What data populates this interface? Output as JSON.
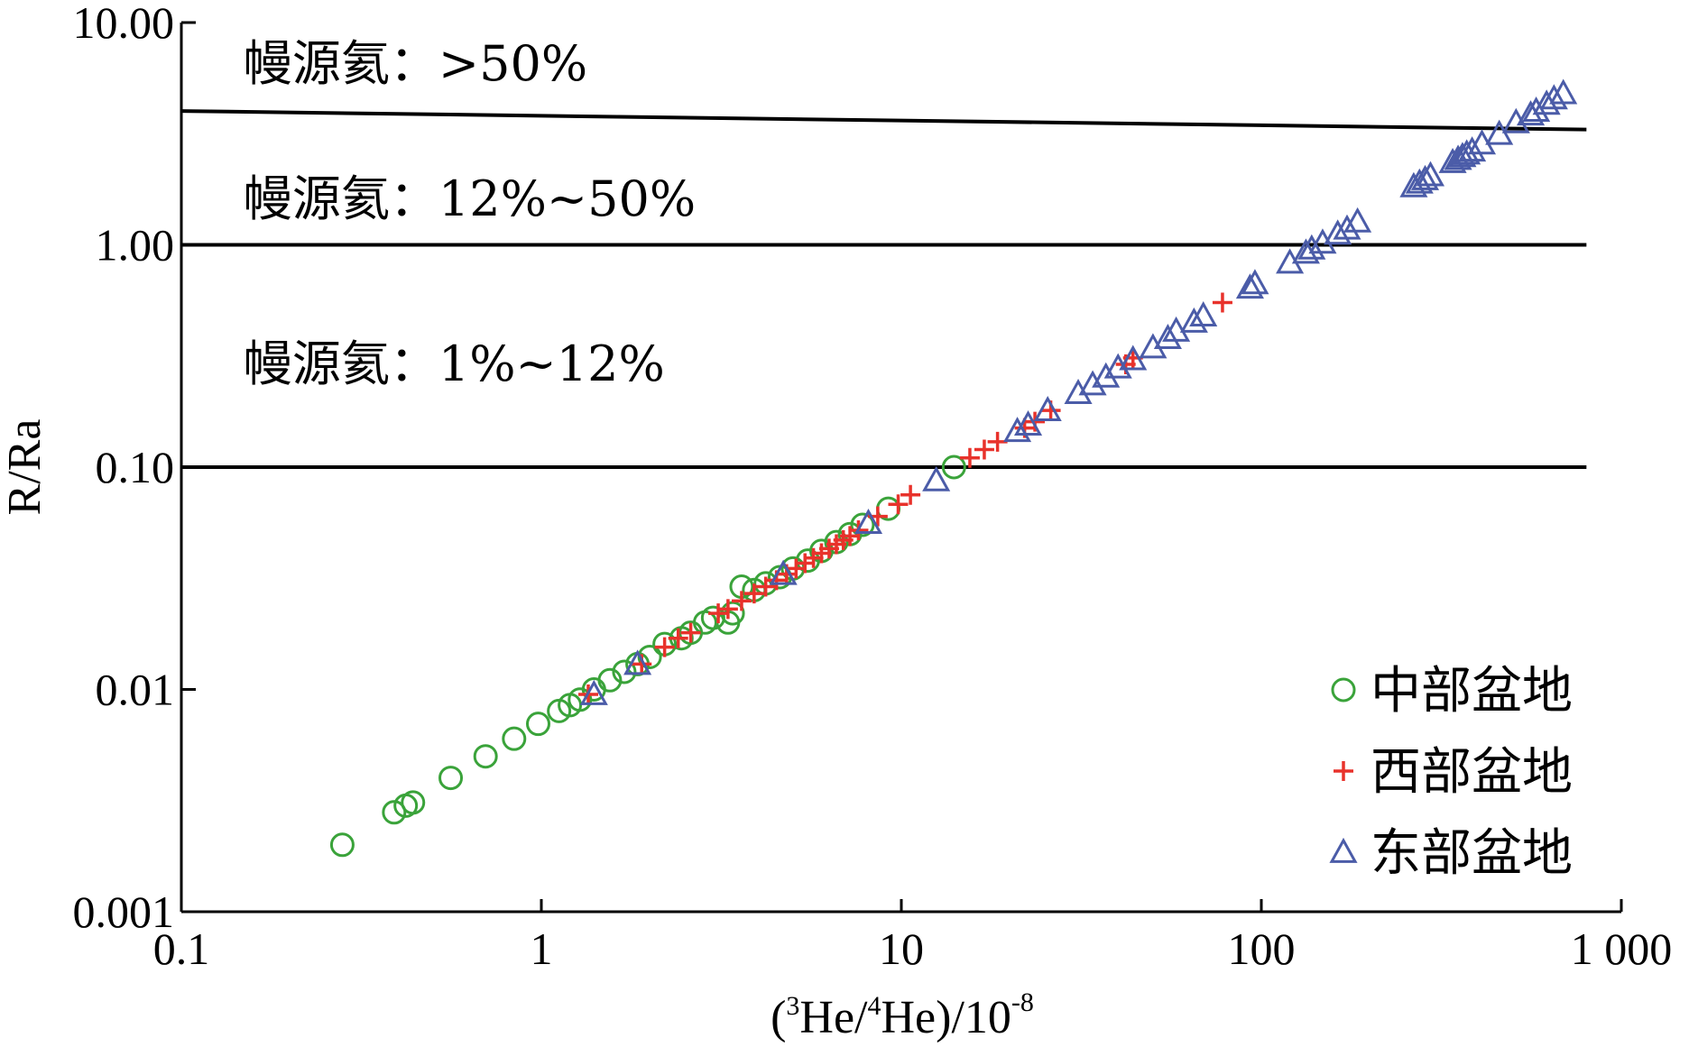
{
  "chart_data": {
    "type": "scatter",
    "x_scale": "log",
    "y_scale": "log",
    "xlim": [
      0.1,
      1000
    ],
    "ylim": [
      0.001,
      10
    ],
    "xlabel_parts": [
      "(",
      "3",
      "He/",
      "4",
      "He)/10",
      "-8"
    ],
    "ylabel": "R/Ra",
    "x_ticks": [
      {
        "value": 0.1,
        "label": "0.1"
      },
      {
        "value": 1,
        "label": "1"
      },
      {
        "value": 10,
        "label": "10"
      },
      {
        "value": 100,
        "label": "100"
      },
      {
        "value": 1000,
        "label": "1 000"
      }
    ],
    "y_ticks": [
      {
        "value": 0.001,
        "label": "0.001"
      },
      {
        "value": 0.01,
        "label": "0.01"
      },
      {
        "value": 0.1,
        "label": "0.10"
      },
      {
        "value": 1,
        "label": "1.00"
      },
      {
        "value": 10,
        "label": "10.00"
      }
    ],
    "reference_lines": [
      {
        "points": [
          [
            0.1,
            4.0
          ],
          [
            800,
            3.3
          ]
        ]
      },
      {
        "points": [
          [
            0.1,
            1.0
          ],
          [
            800,
            1.0
          ]
        ]
      },
      {
        "points": [
          [
            0.1,
            0.1
          ],
          [
            800,
            0.1
          ]
        ]
      }
    ],
    "zone_labels": [
      {
        "text": "幔源氦：>50%",
        "x": 0.5,
        "y": 6.5
      },
      {
        "text": "幔源氦：12%~50%",
        "x": 0.5,
        "y": 1.6
      },
      {
        "text": "幔源氦：1%~12%",
        "x": 0.5,
        "y": 0.29
      }
    ],
    "legend_position": "bottom-right",
    "series": [
      {
        "name": "中部盆地",
        "marker": "circle",
        "color": "#3aa33a",
        "points": [
          [
            0.28,
            0.002
          ],
          [
            0.39,
            0.0028
          ],
          [
            0.42,
            0.003
          ],
          [
            0.44,
            0.0031
          ],
          [
            0.56,
            0.004
          ],
          [
            0.7,
            0.005
          ],
          [
            0.84,
            0.006
          ],
          [
            0.98,
            0.007
          ],
          [
            1.12,
            0.008
          ],
          [
            1.2,
            0.0085
          ],
          [
            1.28,
            0.009
          ],
          [
            1.4,
            0.01
          ],
          [
            1.55,
            0.011
          ],
          [
            1.7,
            0.012
          ],
          [
            1.85,
            0.013
          ],
          [
            2.0,
            0.014
          ],
          [
            2.2,
            0.016
          ],
          [
            2.45,
            0.017
          ],
          [
            2.6,
            0.018
          ],
          [
            2.85,
            0.02
          ],
          [
            3.0,
            0.021
          ],
          [
            3.3,
            0.02
          ],
          [
            3.4,
            0.022
          ],
          [
            3.6,
            0.029
          ],
          [
            3.9,
            0.028
          ],
          [
            4.2,
            0.03
          ],
          [
            4.6,
            0.032
          ],
          [
            5.0,
            0.035
          ],
          [
            5.5,
            0.038
          ],
          [
            6.0,
            0.042
          ],
          [
            6.6,
            0.046
          ],
          [
            7.2,
            0.05
          ],
          [
            7.8,
            0.055
          ],
          [
            9.2,
            0.065
          ],
          [
            14.0,
            0.1
          ]
        ]
      },
      {
        "name": "西部盆地",
        "marker": "plus",
        "color": "#e8322b",
        "points": [
          [
            1.35,
            0.0095
          ],
          [
            1.9,
            0.013
          ],
          [
            2.2,
            0.0155
          ],
          [
            2.4,
            0.017
          ],
          [
            2.6,
            0.018
          ],
          [
            3.1,
            0.022
          ],
          [
            3.3,
            0.023
          ],
          [
            3.6,
            0.025
          ],
          [
            3.9,
            0.027
          ],
          [
            4.2,
            0.029
          ],
          [
            4.5,
            0.031
          ],
          [
            4.8,
            0.033
          ],
          [
            5.1,
            0.035
          ],
          [
            5.4,
            0.037
          ],
          [
            5.7,
            0.039
          ],
          [
            6.0,
            0.041
          ],
          [
            6.3,
            0.043
          ],
          [
            6.6,
            0.045
          ],
          [
            6.9,
            0.047
          ],
          [
            7.2,
            0.049
          ],
          [
            7.6,
            0.052
          ],
          [
            8.6,
            0.06
          ],
          [
            9.8,
            0.068
          ],
          [
            10.6,
            0.075
          ],
          [
            15.5,
            0.11
          ],
          [
            17.0,
            0.12
          ],
          [
            18.5,
            0.13
          ],
          [
            22.0,
            0.15
          ],
          [
            23.5,
            0.16
          ],
          [
            26.0,
            0.18
          ],
          [
            42.0,
            0.29
          ],
          [
            44.0,
            0.31
          ],
          [
            78.0,
            0.55
          ]
        ]
      },
      {
        "name": "东部盆地",
        "marker": "triangle",
        "color": "#4b5ca8",
        "points": [
          [
            1.4,
            0.0095
          ],
          [
            1.85,
            0.013
          ],
          [
            4.7,
            0.033
          ],
          [
            8.1,
            0.056
          ],
          [
            12.5,
            0.087
          ],
          [
            21.0,
            0.145
          ],
          [
            22.5,
            0.155
          ],
          [
            25.5,
            0.18
          ],
          [
            31.0,
            0.215
          ],
          [
            34.0,
            0.235
          ],
          [
            37.0,
            0.255
          ],
          [
            40.0,
            0.28
          ],
          [
            44.0,
            0.305
          ],
          [
            50.0,
            0.345
          ],
          [
            55.0,
            0.38
          ],
          [
            58.0,
            0.41
          ],
          [
            65.0,
            0.45
          ],
          [
            69.0,
            0.48
          ],
          [
            93.0,
            0.64
          ],
          [
            96.0,
            0.67
          ],
          [
            120.0,
            0.83
          ],
          [
            133.0,
            0.92
          ],
          [
            138.0,
            0.96
          ],
          [
            148.0,
            1.02
          ],
          [
            163.0,
            1.12
          ],
          [
            173.0,
            1.18
          ],
          [
            185.0,
            1.27
          ],
          [
            265.0,
            1.83
          ],
          [
            275.0,
            1.9
          ],
          [
            285.0,
            1.97
          ],
          [
            295.0,
            2.05
          ],
          [
            340.0,
            2.35
          ],
          [
            352.0,
            2.43
          ],
          [
            362.0,
            2.5
          ],
          [
            372.0,
            2.57
          ],
          [
            385.0,
            2.65
          ],
          [
            410.0,
            2.85
          ],
          [
            458.0,
            3.15
          ],
          [
            510.0,
            3.55
          ],
          [
            560.0,
            3.85
          ],
          [
            580.0,
            4.0
          ],
          [
            620.0,
            4.3
          ],
          [
            650.0,
            4.55
          ],
          [
            690.0,
            4.8
          ]
        ]
      }
    ]
  }
}
